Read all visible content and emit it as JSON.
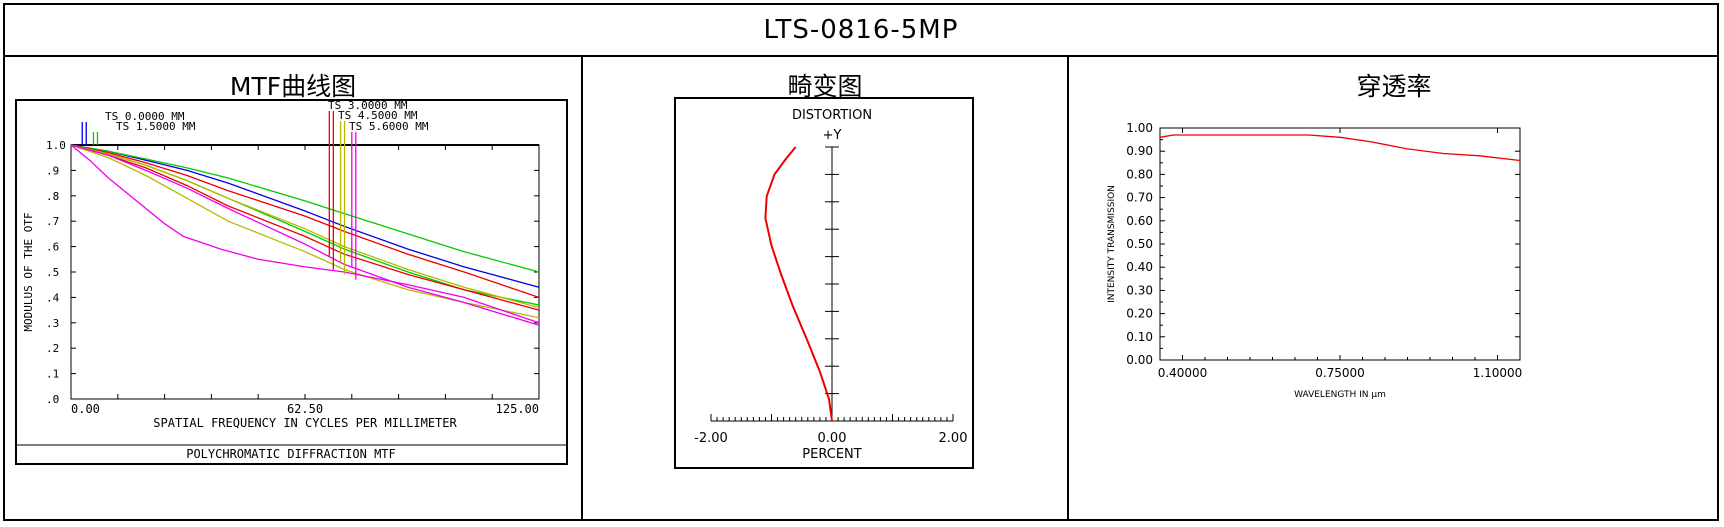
{
  "header": {
    "title": "LTS-0816-5MP"
  },
  "panels": {
    "mtf_title": "MTF曲线图",
    "distortion_title": "畸变图",
    "transmission_title": "穿透率"
  },
  "chart_data": [
    {
      "type": "line",
      "id": "mtf",
      "title": "POLYCHROMATIC DIFFRACTION MTF",
      "xlabel": "SPATIAL FREQUENCY IN CYCLES PER MILLIMETER",
      "ylabel": "MODULUS OF THE OTF",
      "xlim": [
        0,
        125
      ],
      "ylim": [
        0,
        1
      ],
      "x_ticks": [
        "0.00",
        "62.50",
        "125.00"
      ],
      "y_ticks": [
        ".0",
        ".1",
        ".2",
        ".3",
        ".4",
        ".5",
        ".6",
        ".7",
        ".8",
        ".9",
        "1.0"
      ],
      "legend": [
        "TS 0.0000 MM",
        "TS 1.5000 MM",
        "TS 3.0000 MM",
        "TS 4.5000 MM",
        "TS 5.6000 MM"
      ],
      "legend_colors": [
        "#0000ee",
        "#00cc00",
        "#ee0000",
        "#b8b800",
        "#ee00ee"
      ],
      "series": [
        {
          "name": "TS 0.0000 MM",
          "color": "#0000ee",
          "x": [
            0,
            10,
            20,
            31,
            42,
            62.5,
            73,
            90,
            105,
            125
          ],
          "y": [
            1.0,
            0.975,
            0.94,
            0.9,
            0.85,
            0.74,
            0.68,
            0.59,
            0.52,
            0.44
          ]
        },
        {
          "name": "TS 1.5000 MM T",
          "color": "#00cc00",
          "x": [
            0,
            10,
            20,
            31,
            42,
            62.5,
            73,
            90,
            105,
            125
          ],
          "y": [
            1.0,
            0.975,
            0.945,
            0.91,
            0.87,
            0.78,
            0.73,
            0.65,
            0.58,
            0.5
          ]
        },
        {
          "name": "TS 1.5000 MM S",
          "color": "#00cc00",
          "x": [
            0,
            10,
            20,
            31,
            42,
            62.5,
            73,
            90,
            105,
            125
          ],
          "y": [
            1.0,
            0.965,
            0.92,
            0.86,
            0.79,
            0.66,
            0.59,
            0.5,
            0.43,
            0.37
          ]
        },
        {
          "name": "TS 3.0000 MM T",
          "color": "#ee0000",
          "x": [
            0,
            10,
            20,
            31,
            42,
            62.5,
            73,
            90,
            105,
            125
          ],
          "y": [
            1.0,
            0.97,
            0.93,
            0.88,
            0.82,
            0.72,
            0.66,
            0.57,
            0.5,
            0.4
          ]
        },
        {
          "name": "TS 3.0000 MM S",
          "color": "#ee0000",
          "x": [
            0,
            10,
            20,
            31,
            42,
            62.5,
            73,
            90,
            105,
            125
          ],
          "y": [
            1.0,
            0.96,
            0.91,
            0.84,
            0.76,
            0.64,
            0.57,
            0.49,
            0.43,
            0.35
          ]
        },
        {
          "name": "TS 4.5000 MM T",
          "color": "#b8b800",
          "x": [
            0,
            10,
            20,
            31,
            42,
            62.5,
            73,
            90,
            105,
            125
          ],
          "y": [
            1.0,
            0.965,
            0.92,
            0.86,
            0.79,
            0.67,
            0.6,
            0.51,
            0.44,
            0.36
          ]
        },
        {
          "name": "TS 4.5000 MM S",
          "color": "#b8b800",
          "x": [
            0,
            10,
            20,
            31,
            42,
            62.5,
            73,
            90,
            105,
            125
          ],
          "y": [
            1.0,
            0.95,
            0.88,
            0.79,
            0.7,
            0.58,
            0.51,
            0.43,
            0.38,
            0.32
          ]
        },
        {
          "name": "TS 5.6000 MM T",
          "color": "#ee00ee",
          "x": [
            0,
            10,
            20,
            31,
            42,
            62.5,
            73,
            90,
            105,
            125
          ],
          "y": [
            1.0,
            0.96,
            0.9,
            0.83,
            0.75,
            0.61,
            0.53,
            0.44,
            0.38,
            0.29
          ]
        },
        {
          "name": "TS 5.6000 MM S",
          "color": "#ee00ee",
          "x": [
            0,
            5,
            10,
            15,
            20,
            25,
            30,
            40,
            50,
            62.5,
            73,
            90,
            105,
            125
          ],
          "y": [
            1.0,
            0.94,
            0.87,
            0.81,
            0.75,
            0.69,
            0.64,
            0.59,
            0.55,
            0.52,
            0.5,
            0.45,
            0.4,
            0.3
          ]
        }
      ]
    },
    {
      "type": "line",
      "id": "distortion",
      "title": "DISTORTION",
      "axis_top_label": "+Y",
      "xlabel": "PERCENT",
      "xlim": [
        -2,
        2
      ],
      "ylim": [
        0,
        1
      ],
      "x_ticks": [
        "-2.00",
        "0.00",
        "2.00"
      ],
      "series": [
        {
          "name": "",
          "color": "#ee0000",
          "x": [
            0,
            -0.05,
            -0.2,
            -0.42,
            -0.65,
            -0.85,
            -1.0,
            -1.1,
            -1.08,
            -0.95,
            -0.75,
            -0.6
          ],
          "y": [
            0,
            0.08,
            0.18,
            0.3,
            0.42,
            0.54,
            0.64,
            0.74,
            0.82,
            0.9,
            0.96,
            1.0
          ]
        }
      ]
    },
    {
      "type": "line",
      "id": "transmission",
      "xlabel": "WAVELENGTH IN μm",
      "ylabel": "INTENSITY TRANSMISSION",
      "xlim": [
        0.35,
        1.15
      ],
      "ylim": [
        0,
        1.0
      ],
      "x_ticks": [
        "0.40000",
        "0.75000",
        "1.10000"
      ],
      "y_ticks": [
        "0.00",
        "0.10",
        "0.20",
        "0.30",
        "0.40",
        "0.50",
        "0.60",
        "0.70",
        "0.80",
        "0.90",
        "1.00"
      ],
      "series": [
        {
          "name": "",
          "color": "#ee0000",
          "x": [
            0.35,
            0.38,
            0.5,
            0.6,
            0.68,
            0.75,
            0.82,
            0.9,
            0.98,
            1.06,
            1.15
          ],
          "y": [
            0.96,
            0.97,
            0.97,
            0.97,
            0.97,
            0.96,
            0.94,
            0.91,
            0.89,
            0.88,
            0.86
          ]
        }
      ]
    }
  ]
}
